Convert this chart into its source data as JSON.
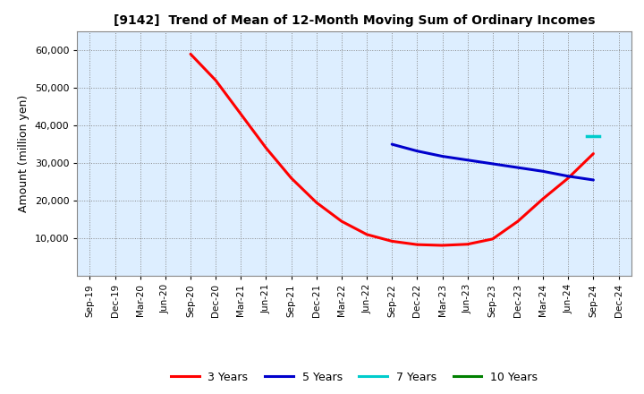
{
  "title": "[9142]  Trend of Mean of 12-Month Moving Sum of Ordinary Incomes",
  "ylabel": "Amount (million yen)",
  "background_color": "#ffffff",
  "plot_bg_color": "#ddeeff",
  "grid_color": "#888888",
  "ylim": [
    0,
    65000
  ],
  "yticks": [
    10000,
    20000,
    30000,
    40000,
    50000,
    60000
  ],
  "x_labels": [
    "Sep-19",
    "Dec-19",
    "Mar-20",
    "Jun-20",
    "Sep-20",
    "Dec-20",
    "Mar-21",
    "Jun-21",
    "Sep-21",
    "Dec-21",
    "Mar-22",
    "Jun-22",
    "Sep-22",
    "Dec-22",
    "Mar-23",
    "Jun-23",
    "Sep-23",
    "Dec-23",
    "Mar-24",
    "Jun-24",
    "Sep-24",
    "Dec-24"
  ],
  "series_3y": {
    "color": "#ff0000",
    "linewidth": 2.2,
    "values": [
      null,
      null,
      null,
      null,
      59000,
      52000,
      43000,
      34000,
      26000,
      19500,
      14500,
      11000,
      9200,
      8300,
      8100,
      8400,
      9800,
      14500,
      20500,
      26000,
      32500,
      null
    ]
  },
  "series_5y": {
    "color": "#0000cc",
    "linewidth": 2.2,
    "values": [
      null,
      null,
      null,
      null,
      null,
      null,
      null,
      null,
      null,
      null,
      null,
      null,
      35000,
      33200,
      31800,
      30800,
      29800,
      28800,
      27800,
      26500,
      25500,
      null
    ]
  },
  "series_7y": {
    "color": "#00cccc",
    "linewidth": 2.5,
    "values": [
      null,
      null,
      null,
      null,
      null,
      null,
      null,
      null,
      null,
      null,
      null,
      null,
      null,
      null,
      null,
      null,
      null,
      null,
      null,
      null,
      37200,
      null
    ]
  },
  "legend_labels": [
    "3 Years",
    "5 Years",
    "7 Years",
    "10 Years"
  ],
  "legend_colors": [
    "#ff0000",
    "#0000cc",
    "#00cccc",
    "#008000"
  ]
}
